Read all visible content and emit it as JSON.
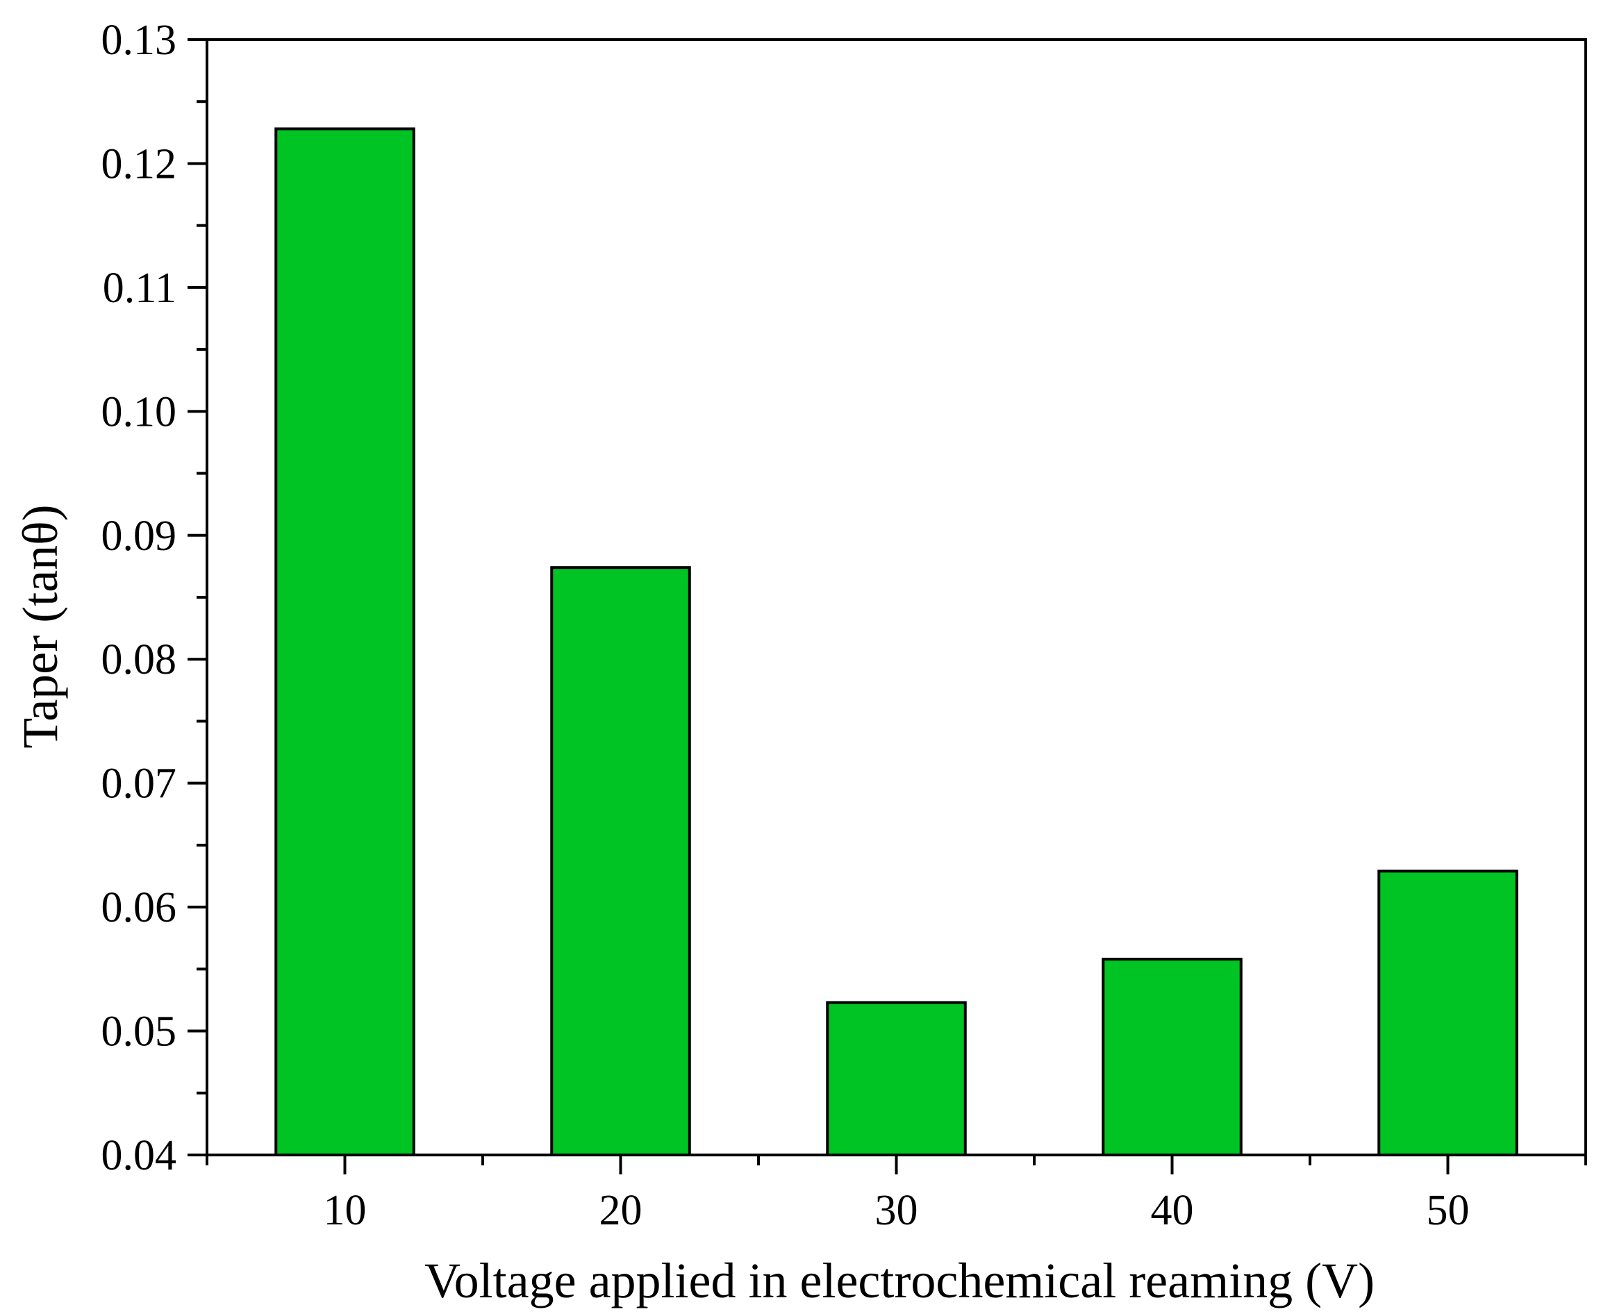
{
  "chart_data": {
    "type": "bar",
    "title": "",
    "xlabel": "Voltage applied in electrochemical reaming (V)",
    "ylabel": "Taper (tanθ)",
    "categories": [
      "10",
      "20",
      "30",
      "40",
      "50"
    ],
    "x": [
      10,
      20,
      30,
      40,
      50
    ],
    "values": [
      0.1228,
      0.0874,
      0.0523,
      0.0558,
      0.0629
    ],
    "xlim": [
      5,
      55
    ],
    "ylim": [
      0.04,
      0.13
    ],
    "yticks": [
      0.04,
      0.05,
      0.06,
      0.07,
      0.08,
      0.09,
      0.1,
      0.11,
      0.12,
      0.13
    ],
    "ytick_labels": [
      "0.04",
      "0.05",
      "0.06",
      "0.07",
      "0.08",
      "0.09",
      "0.10",
      "0.11",
      "0.12",
      "0.13"
    ],
    "bar_color": "#00c423",
    "bar_edge_color": "#000000",
    "grid": false,
    "legend": "none"
  }
}
